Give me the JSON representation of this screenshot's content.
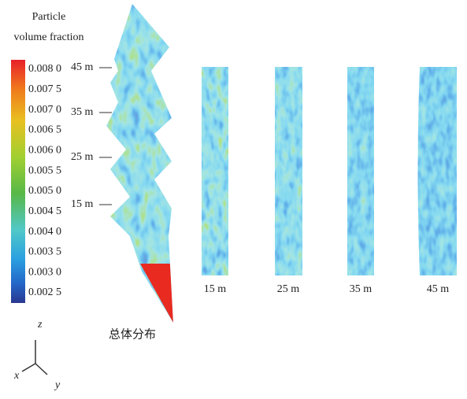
{
  "colorbar": {
    "title_lines": [
      "Particle",
      "volume fraction"
    ],
    "labels": [
      "0.008 0",
      "0.007 5",
      "0.007 0",
      "0.006 5",
      "0.006 0",
      "0.005 5",
      "0.005 0",
      "0.004 5",
      "0.004 0",
      "0.003 5",
      "0.003 0",
      "0.002 5"
    ]
  },
  "overall": {
    "height_labels": [
      "45 m",
      "35 m",
      "25 m",
      "15 m"
    ],
    "caption": "总体分布"
  },
  "panels": {
    "labels": [
      "15 m",
      "25 m",
      "35 m",
      "45 m"
    ]
  },
  "axes": {
    "z": "z",
    "x": "x",
    "y": "y"
  }
}
